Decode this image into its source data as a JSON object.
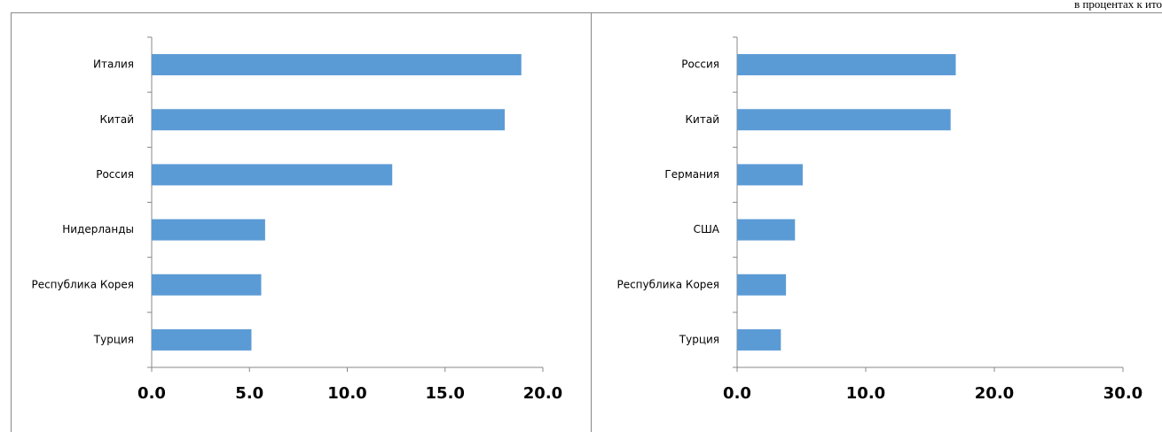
{
  "note_text": "в процентах к ито",
  "chart_data": [
    {
      "type": "bar",
      "orientation": "horizontal",
      "color": "#5b9bd5",
      "categories": [
        "Италия",
        "Китай",
        "Россия",
        "Нидерланды",
        "Республика Корея",
        "Турция"
      ],
      "values": [
        18.9,
        18.05,
        12.3,
        5.8,
        5.6,
        5.1
      ],
      "xlim": [
        0,
        20
      ],
      "xticks": [
        {
          "value": 0,
          "label": "0.0"
        },
        {
          "value": 5,
          "label": "5.0"
        },
        {
          "value": 10,
          "label": "10.0"
        },
        {
          "value": 15,
          "label": "15.0"
        },
        {
          "value": 20,
          "label": "20.0"
        }
      ]
    },
    {
      "type": "bar",
      "orientation": "horizontal",
      "color": "#5b9bd5",
      "categories": [
        "Россия",
        "Китай",
        "Германия",
        "США",
        "Республика Корея",
        "Турция"
      ],
      "values": [
        17.0,
        16.6,
        5.1,
        4.5,
        3.8,
        3.4
      ],
      "xlim": [
        0,
        30
      ],
      "xticks": [
        {
          "value": 0,
          "label": "0.0"
        },
        {
          "value": 10,
          "label": "10.0"
        },
        {
          "value": 20,
          "label": "20.0"
        },
        {
          "value": 30,
          "label": "30.0"
        }
      ]
    }
  ]
}
